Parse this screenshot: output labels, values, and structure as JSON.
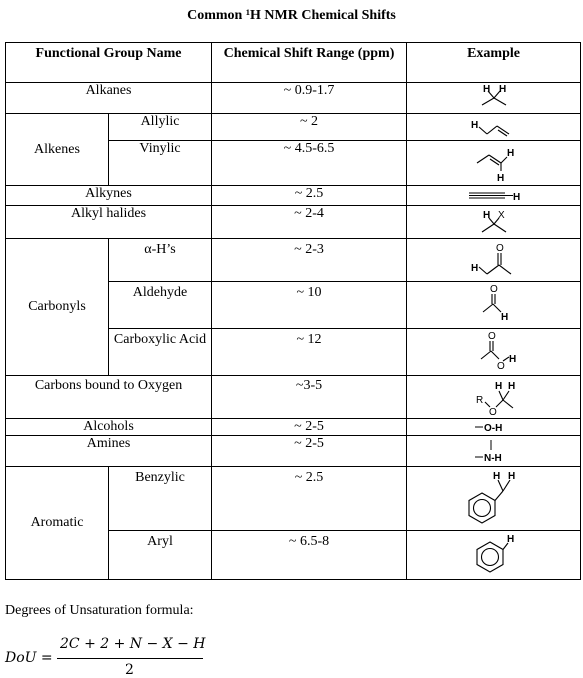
{
  "title": "Common ¹H NMR Chemical Shifts",
  "headers": {
    "group": "Functional Group Name",
    "shift": "Chemical Shift Range (ppm)",
    "example": "Example"
  },
  "rows": {
    "alkanes": {
      "name": "Alkanes",
      "shift": "~ 0.9-1.7"
    },
    "alkenes": {
      "name": "Alkenes",
      "allylic": {
        "name": "Allylic",
        "shift": "~ 2"
      },
      "vinylic": {
        "name": "Vinylic",
        "shift": "~ 4.5-6.5"
      }
    },
    "alkynes": {
      "name": "Alkynes",
      "shift": "~ 2.5"
    },
    "alkyl_halides": {
      "name": "Alkyl halides",
      "shift": "~ 2-4"
    },
    "carbonyls": {
      "name": "Carbonyls",
      "alpha": {
        "name": "α-H’s",
        "shift": "~ 2-3"
      },
      "aldehyde": {
        "name": "Aldehyde",
        "shift": "~ 10"
      },
      "carboxylic": {
        "name": "Carboxylic Acid",
        "shift": "~ 12"
      }
    },
    "carbons_oxygen": {
      "name": "Carbons bound to Oxygen",
      "shift": "~3-5"
    },
    "alcohols": {
      "name": "Alcohols",
      "shift": "~ 2-5"
    },
    "amines": {
      "name": "Amines",
      "shift": "~ 2-5"
    },
    "aromatic": {
      "name": "Aromatic",
      "benzylic": {
        "name": "Benzylic",
        "shift": "~ 2.5"
      },
      "aryl": {
        "name": "Aryl",
        "shift": "~ 6.5-8"
      }
    }
  },
  "structure_labels": {
    "h": "H",
    "x": "X",
    "o": "O",
    "r": "R",
    "n": "N",
    "oh": "O-H",
    "nh": "N-H"
  },
  "dou": {
    "caption": "Degrees of Unsaturation formula:",
    "lhs": "DoU =",
    "numerator": "2C + 2 + N − X − H",
    "denominator": "2"
  }
}
